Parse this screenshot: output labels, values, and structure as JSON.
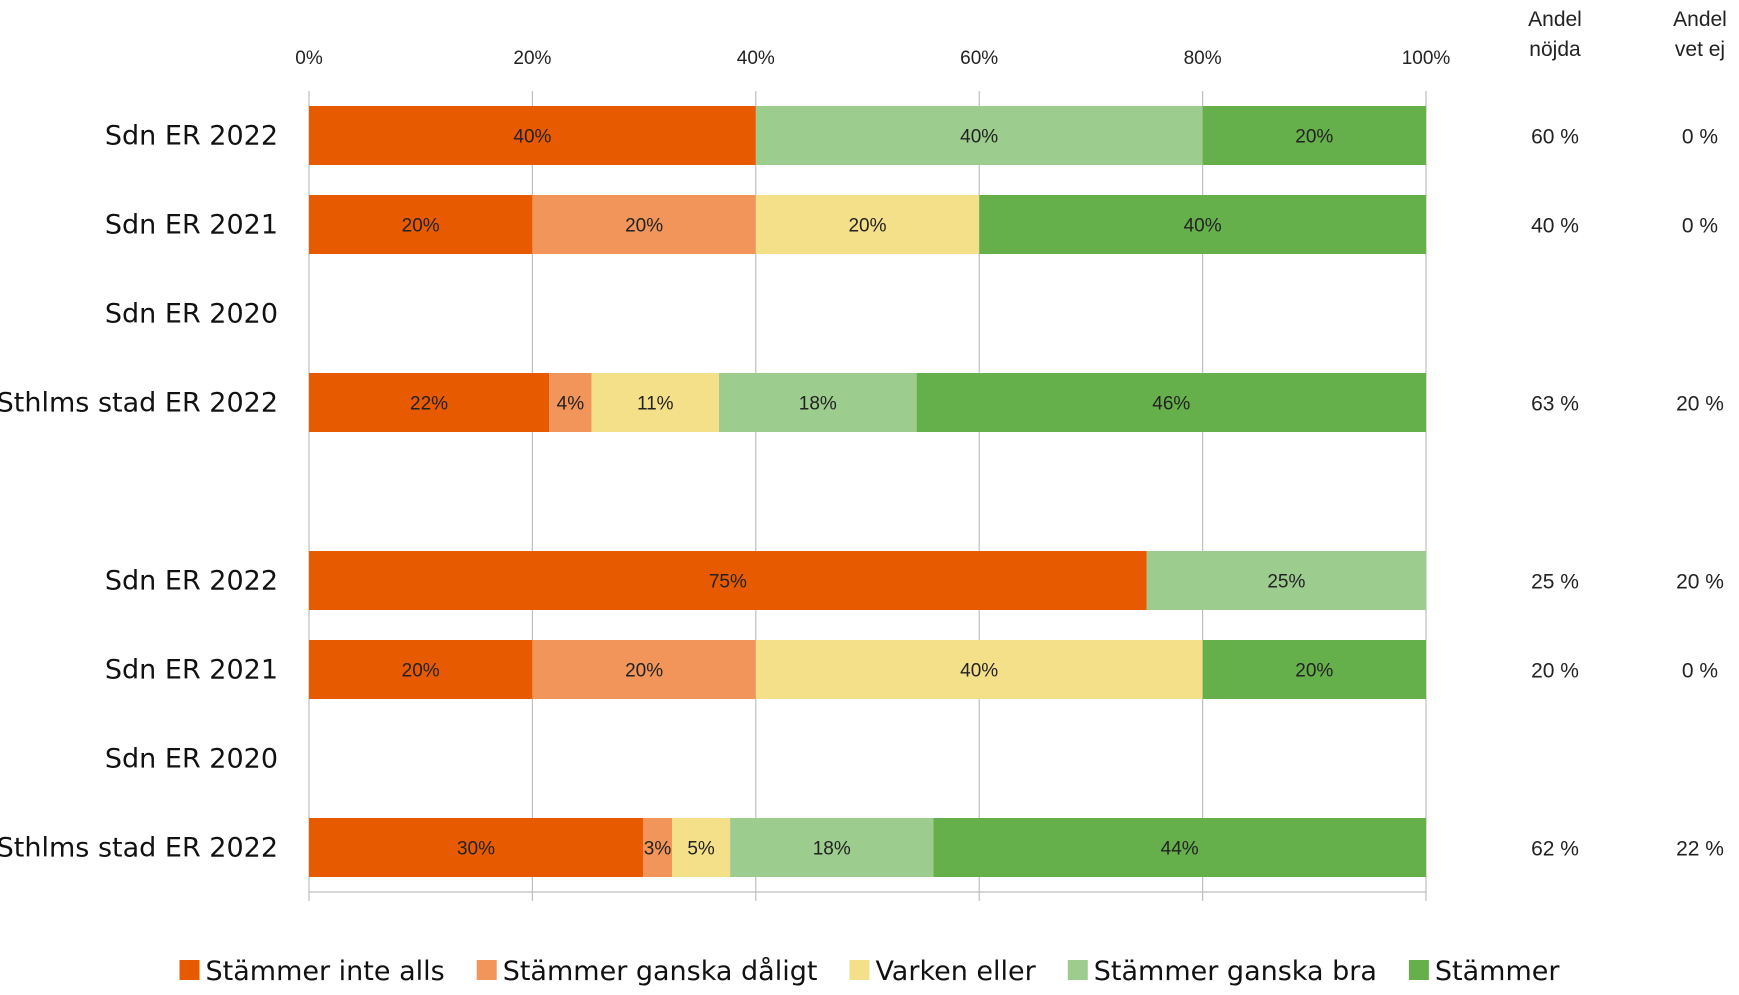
{
  "chart_data": {
    "type": "bar",
    "orientation": "horizontal",
    "stacked": true,
    "percent_stacked": true,
    "xlim": [
      0,
      100
    ],
    "x_ticks": [
      "0%",
      "20%",
      "40%",
      "60%",
      "80%",
      "100%"
    ],
    "grid": "vertical",
    "legend_position": "bottom",
    "side_columns": [
      {
        "header_line1": "Andel",
        "header_line2": "nöjda"
      },
      {
        "header_line1": "Andel",
        "header_line2": "vet ej"
      }
    ],
    "series": [
      {
        "name": "Stämmer inte alls",
        "color": "#E85A00"
      },
      {
        "name": "Stämmer ganska dåligt",
        "color": "#F2955A"
      },
      {
        "name": "Varken eller",
        "color": "#F5E08A"
      },
      {
        "name": "Stämmer ganska bra",
        "color": "#9DCC8F"
      },
      {
        "name": "Stämmer",
        "color": "#66B04C"
      }
    ],
    "rows": [
      {
        "category": "Sdn ER 2022",
        "values": [
          40,
          0,
          0,
          40,
          20
        ],
        "labels": [
          "40%",
          "",
          "",
          "40%",
          "20%"
        ],
        "nojda": "60 %",
        "vet_ej": "0 %"
      },
      {
        "category": "Sdn ER 2021",
        "values": [
          20,
          20,
          20,
          0,
          40
        ],
        "labels": [
          "20%",
          "20%",
          "20%",
          "",
          "40%"
        ],
        "nojda": "40 %",
        "vet_ej": "0 %"
      },
      {
        "category": "Sdn ER 2020",
        "values": [
          0,
          0,
          0,
          0,
          0
        ],
        "labels": [
          "",
          "",
          "",
          "",
          ""
        ],
        "nojda": "",
        "vet_ej": ""
      },
      {
        "category": "Sthlms stad ER 2022",
        "values": [
          21.5,
          3.8,
          11.4,
          17.7,
          45.6
        ],
        "labels": [
          "22%",
          "4%",
          "11%",
          "18%",
          "46%"
        ],
        "nojda": "63 %",
        "vet_ej": "20 %"
      },
      {
        "category": "",
        "values": [
          0,
          0,
          0,
          0,
          0
        ],
        "labels": [
          "",
          "",
          "",
          "",
          ""
        ],
        "nojda": "",
        "vet_ej": ""
      },
      {
        "category": "Sdn ER 2022",
        "values": [
          75,
          0,
          0,
          25,
          0
        ],
        "labels": [
          "75%",
          "",
          "",
          "25%",
          ""
        ],
        "nojda": "25 %",
        "vet_ej": "20 %"
      },
      {
        "category": "Sdn ER 2021",
        "values": [
          20,
          20,
          40,
          0,
          20
        ],
        "labels": [
          "20%",
          "20%",
          "40%",
          "",
          "20%"
        ],
        "nojda": "20 %",
        "vet_ej": "0 %"
      },
      {
        "category": "Sdn ER 2020",
        "values": [
          0,
          0,
          0,
          0,
          0
        ],
        "labels": [
          "",
          "",
          "",
          "",
          ""
        ],
        "nojda": "",
        "vet_ej": ""
      },
      {
        "category": "Sthlms stad ER 2022",
        "values": [
          29.9,
          2.6,
          5.2,
          18.2,
          44.1
        ],
        "labels": [
          "30%",
          "3%",
          "5%",
          "18%",
          "44%"
        ],
        "nojda": "62 %",
        "vet_ej": "22 %"
      }
    ]
  }
}
